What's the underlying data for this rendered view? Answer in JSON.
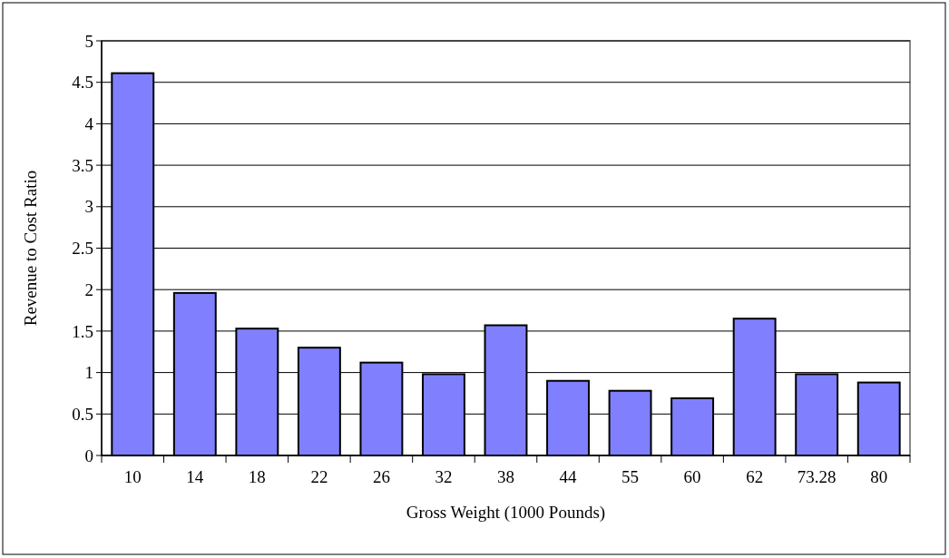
{
  "chart_data": {
    "type": "bar",
    "xlabel": "Gross Weight (1000 Pounds)",
    "ylabel": "Revenue to Cost Ratio",
    "categories": [
      "10",
      "14",
      "18",
      "22",
      "26",
      "32",
      "38",
      "44",
      "55",
      "60",
      "62",
      "73.28",
      "80"
    ],
    "values": [
      4.61,
      1.96,
      1.53,
      1.3,
      1.12,
      0.98,
      1.57,
      0.9,
      0.78,
      0.69,
      1.65,
      0.98,
      0.88
    ],
    "color": "#8080ff",
    "ylim": [
      0,
      5
    ],
    "yticks": [
      0,
      0.5,
      1,
      1.5,
      2,
      2.5,
      3,
      3.5,
      4,
      4.5,
      5
    ],
    "grid": "y"
  }
}
